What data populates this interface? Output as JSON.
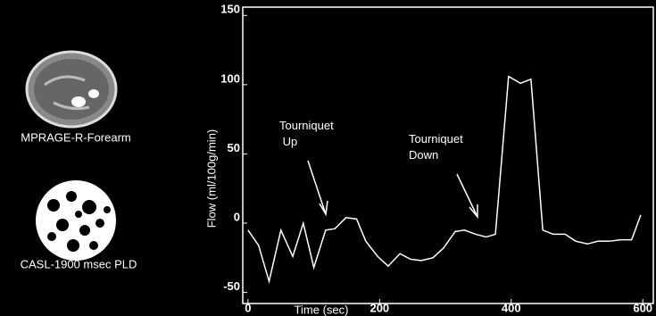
{
  "chart_data": {
    "type": "line",
    "x_label": "Time (sec)",
    "y_label": "Flow (ml/100g/min)",
    "x": [
      0,
      16,
      32,
      50,
      68,
      84,
      100,
      118,
      132,
      149,
      165,
      179,
      197,
      213,
      231,
      247,
      263,
      281,
      297,
      315,
      329,
      346,
      362,
      376,
      396,
      414,
      430,
      448,
      464,
      482,
      498,
      516,
      532,
      550,
      566,
      583,
      597
    ],
    "series": [
      {
        "color": "#ffffff",
        "values": [
          -5,
          -16,
          -42,
          -5,
          -24,
          0,
          -32,
          -5,
          -4,
          4,
          3,
          -13,
          -24,
          -31,
          -22,
          -26,
          -27,
          -25,
          -18,
          -6,
          -5,
          -8,
          -10,
          -8,
          106,
          101,
          104,
          -5,
          -8,
          -8,
          -13,
          -15,
          -13,
          -13,
          -12,
          -12,
          6
        ]
      }
    ],
    "xlim": [
      -8,
      616
    ],
    "ylim": [
      -58,
      156
    ],
    "xticks": [
      0,
      200,
      400,
      600
    ],
    "yticks": [
      150,
      100,
      50,
      0,
      -50
    ],
    "annotations": [
      {
        "text": "Tourniquet\n Up"
      },
      {
        "text": "Tourniquet\nDown"
      }
    ]
  },
  "images": [
    {
      "caption": "MPRAGE-R-Forearm"
    },
    {
      "caption": "CASL-1900 msec PLD"
    }
  ]
}
